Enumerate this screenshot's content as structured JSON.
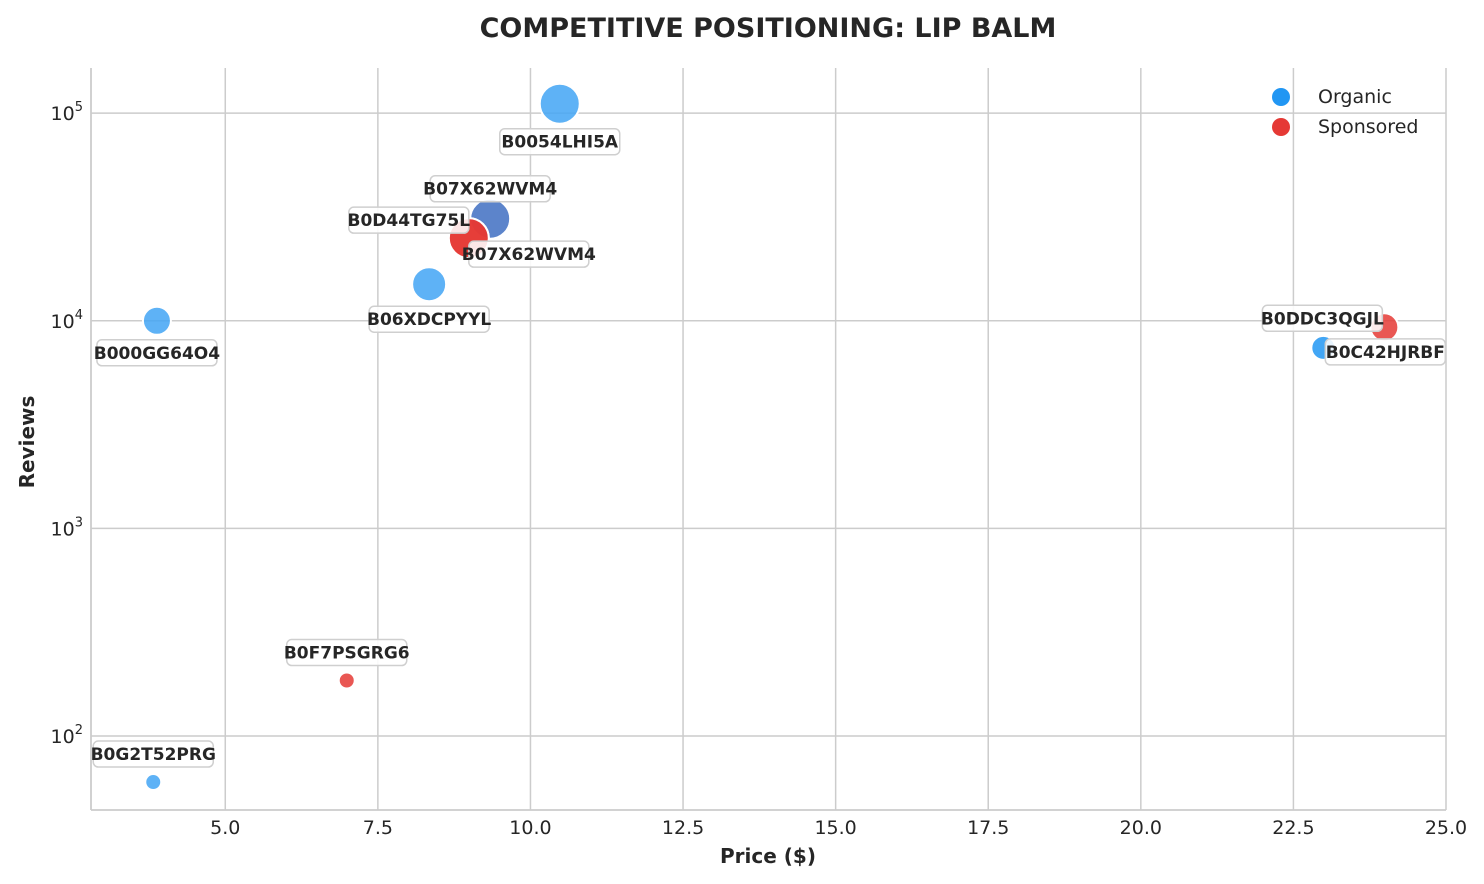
{
  "chart_data": {
    "type": "scatter",
    "title": "COMPETITIVE POSITIONING: LIP BALM",
    "xlabel": "Price ($)",
    "ylabel": "Reviews",
    "xlim": [
      2.8,
      25.0
    ],
    "ylim": [
      44,
      165000
    ],
    "yscale": "log",
    "grid": true,
    "legend_position": "top-right",
    "x_ticks": [
      {
        "value": 5.0,
        "label": "5.0"
      },
      {
        "value": 7.5,
        "label": "7.5"
      },
      {
        "value": 10.0,
        "label": "10.0"
      },
      {
        "value": 12.5,
        "label": "12.5"
      },
      {
        "value": 15.0,
        "label": "15.0"
      },
      {
        "value": 17.5,
        "label": "17.5"
      },
      {
        "value": 20.0,
        "label": "20.0"
      },
      {
        "value": 22.5,
        "label": "22.5"
      },
      {
        "value": 25.0,
        "label": "25.0"
      }
    ],
    "y_ticks": [
      {
        "value": 100,
        "base": "10",
        "exp": "2"
      },
      {
        "value": 1000,
        "base": "10",
        "exp": "3"
      },
      {
        "value": 10000,
        "base": "10",
        "exp": "4"
      },
      {
        "value": 100000,
        "base": "10",
        "exp": "5"
      }
    ],
    "legend": [
      {
        "name": "Organic",
        "color": "#2196F3"
      },
      {
        "name": "Sponsored",
        "color": "#E53935"
      }
    ],
    "points": [
      {
        "asin": "B0054LHI5A",
        "price": 10.48,
        "reviews": 111000,
        "type": "Organic",
        "size": "xl",
        "color": "#42A5F5",
        "label_pos": "below"
      },
      {
        "asin": "B07X62WVM4",
        "price": 9.34,
        "reviews": 31000,
        "type": "Organic",
        "size": "xl",
        "color": "#3F6FC2",
        "label_pos": "above"
      },
      {
        "asin": "B0D44TG75L",
        "price": 8.99,
        "reviews": 25000,
        "type": "Sponsored",
        "size": "xl",
        "color": "#E53935",
        "label_pos": "above-left"
      },
      {
        "asin": "B07X62WVM4",
        "price": 8.99,
        "reviews": 25000,
        "type": "Sponsored",
        "size": "xl",
        "color": "#E53935",
        "label_pos": "below-right"
      },
      {
        "asin": "B06XDCPYYL",
        "price": 8.34,
        "reviews": 15000,
        "type": "Organic",
        "size": "l",
        "color": "#42A5F5",
        "label_pos": "below"
      },
      {
        "asin": "B000GG64O4",
        "price": 3.88,
        "reviews": 10000,
        "type": "Organic",
        "size": "m",
        "color": "#42A5F5",
        "label_pos": "below"
      },
      {
        "asin": "B0DDC3QGJL",
        "price": 23.99,
        "reviews": 9300,
        "type": "Sponsored",
        "size": "m",
        "color": "#E53935",
        "label_pos": "above-left"
      },
      {
        "asin": "B0C42HJRBF",
        "price": 22.99,
        "reviews": 7400,
        "type": "Organic",
        "size": "s",
        "color": "#2196F3",
        "label_pos": "below-right"
      },
      {
        "asin": "B0F7PSGRG6",
        "price": 6.99,
        "reviews": 185,
        "type": "Sponsored",
        "size": "xs",
        "color": "#E53935",
        "label_pos": "above"
      },
      {
        "asin": "B0G2T52PRG",
        "price": 3.82,
        "reviews": 60,
        "type": "Organic",
        "size": "xs",
        "color": "#42A5F5",
        "label_pos": "above"
      }
    ]
  }
}
